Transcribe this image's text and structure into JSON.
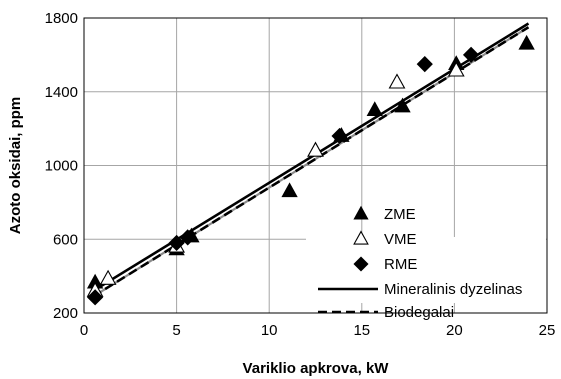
{
  "chart_data": {
    "type": "scatter",
    "xlabel": "Variklio apkrova, kW",
    "ylabel": "Azoto oksidai, ppm",
    "xlim": [
      0,
      25
    ],
    "ylim": [
      200,
      1800
    ],
    "xticks": [
      0,
      5,
      10,
      15,
      20,
      25
    ],
    "yticks": [
      200,
      600,
      1000,
      1400,
      1800
    ],
    "grid": true,
    "legend_position": "bottom-right",
    "series": [
      {
        "name": "ZME",
        "kind": "scatter",
        "marker": "triangle-filled",
        "points": [
          [
            0.6,
            365
          ],
          [
            5.0,
            545
          ],
          [
            5.8,
            615
          ],
          [
            11.1,
            860
          ],
          [
            13.9,
            1160
          ],
          [
            15.7,
            1300
          ],
          [
            17.2,
            1320
          ],
          [
            20.1,
            1550
          ],
          [
            23.9,
            1660
          ]
        ]
      },
      {
        "name": "VME",
        "kind": "scatter",
        "marker": "triangle-open",
        "points": [
          [
            0.6,
            320
          ],
          [
            1.3,
            385
          ],
          [
            5.0,
            560
          ],
          [
            12.5,
            1080
          ],
          [
            16.9,
            1450
          ],
          [
            20.1,
            1515
          ]
        ]
      },
      {
        "name": "RME",
        "kind": "scatter",
        "marker": "diamond-filled",
        "points": [
          [
            0.6,
            285
          ],
          [
            5.0,
            580
          ],
          [
            5.6,
            610
          ],
          [
            13.8,
            1160
          ],
          [
            18.4,
            1550
          ],
          [
            20.9,
            1600
          ]
        ]
      },
      {
        "name": "Mineralinis dyzelinas",
        "kind": "line",
        "style": "solid",
        "points": [
          [
            0.5,
            320
          ],
          [
            24.0,
            1770
          ]
        ]
      },
      {
        "name": "Biodegalai",
        "kind": "line",
        "style": "dashed",
        "points": [
          [
            0.5,
            290
          ],
          [
            24.0,
            1750
          ]
        ]
      }
    ]
  }
}
